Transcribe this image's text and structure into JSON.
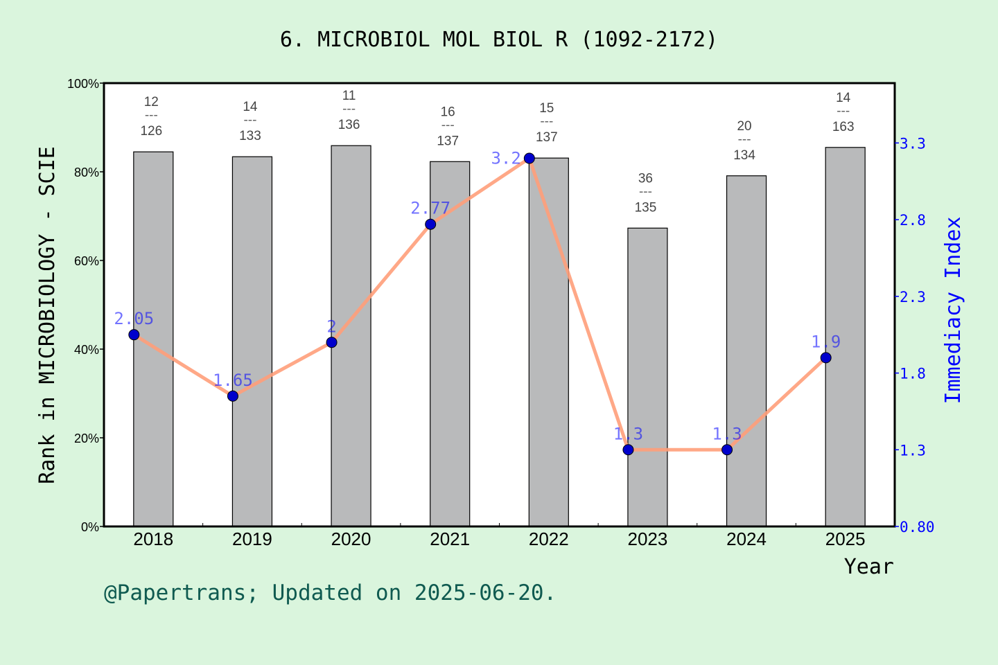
{
  "chart_data": {
    "type": "bar",
    "title": "6. MICROBIOL MOL BIOL R (1092-2172)",
    "xlabel": "Year",
    "ylabel": "Rank in MICROBIOLOGY - SCIE",
    "ylabel_right": "Immediacy Index",
    "categories": [
      "2018",
      "2019",
      "2020",
      "2021",
      "2022",
      "2023",
      "2024",
      "2025"
    ],
    "ylim": [
      0,
      100
    ],
    "yticks": [
      "0%",
      "20%",
      "40%",
      "60%",
      "80%",
      "100%"
    ],
    "ylim_right": [
      0.8,
      3.69
    ],
    "yticks_right": [
      "0.80",
      "1.3",
      "1.8",
      "2.3",
      "2.8",
      "3.3"
    ],
    "series": [
      {
        "type": "bar",
        "values": [
          84.5,
          83.4,
          85.9,
          82.3,
          83.1,
          67.3,
          79.1,
          85.5
        ],
        "color": "#b9babb",
        "labels": [
          [
            "12",
            "126"
          ],
          [
            "14",
            "133"
          ],
          [
            "11",
            "136"
          ],
          [
            "16",
            "137"
          ],
          [
            "15",
            "137"
          ],
          [
            "36",
            "135"
          ],
          [
            "20",
            "134"
          ],
          [
            "14",
            "163"
          ]
        ]
      },
      {
        "type": "line",
        "axis": "right",
        "values": [
          2.05,
          1.65,
          2,
          2.77,
          3.2,
          1.3,
          1.3,
          1.9
        ],
        "labels": [
          "2.05",
          "1.65",
          "2",
          "2.77",
          "3.2",
          "1.3",
          "1.3",
          "1.9"
        ],
        "color": "#ff9f7a",
        "marker_color": "#0000cc"
      }
    ],
    "grid": false,
    "colors": {
      "background": "#daf5dd",
      "right_axis": "#0000ff",
      "footer": "#0f5a50"
    }
  },
  "footer": "@Papertrans; Updated on 2025-06-20."
}
